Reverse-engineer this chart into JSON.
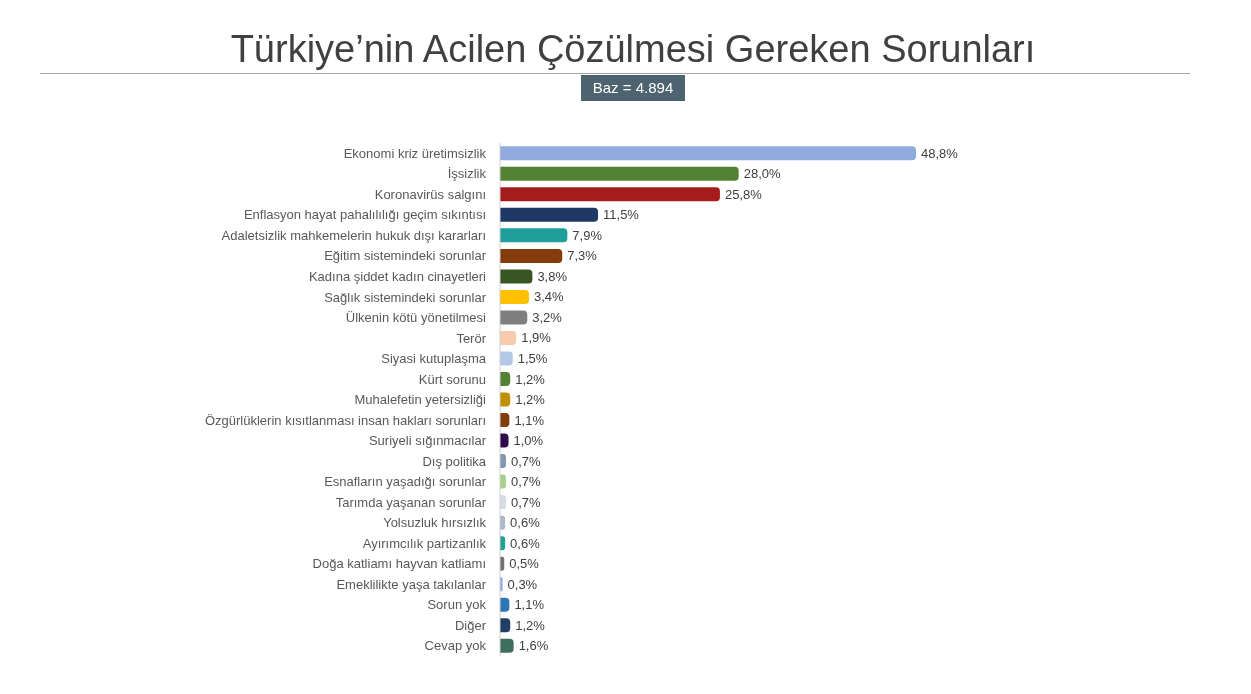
{
  "chart_data": {
    "type": "bar",
    "orientation": "horizontal",
    "title": "Türkiye’nin Acilen Çözülmesi Gereken Sorunları",
    "subtitle": "Baz = 4.894",
    "categories": [
      "Ekonomi kriz üretimsizlik",
      "İşsizlik",
      "Koronavirüs salgını",
      "Enflasyon hayat pahalılılığı geçim sıkıntısı",
      "Adaletsizlik mahkemelerin hukuk dışı kararları",
      "Eğitim sistemindeki sorunlar",
      "Kadına şiddet kadın cinayetleri",
      "Sağlık sistemindeki sorunlar",
      "Ülkenin kötü yönetilmesi",
      "Terör",
      "Siyasi kutuplaşma",
      "Kürt sorunu",
      "Muhalefetin yetersizliği",
      "Özgürlüklerin kısıtlanması insan hakları sorunları",
      "Suriyeli sığınmacılar",
      "Dış politika",
      "Esnafların yaşadığı sorunlar",
      "Tarımda yaşanan sorunlar",
      "Yolsuzluk hırsızlık",
      "Ayırımcılık partizanlık",
      "Doğa katliamı hayvan katliamı",
      "Emeklilikte yaşa takılanlar",
      "Sorun yok",
      "Diğer",
      "Cevap yok"
    ],
    "values": [
      48.8,
      28.0,
      25.8,
      11.5,
      7.9,
      7.3,
      3.8,
      3.4,
      3.2,
      1.9,
      1.5,
      1.2,
      1.2,
      1.1,
      1.0,
      0.7,
      0.7,
      0.7,
      0.6,
      0.6,
      0.5,
      0.3,
      1.1,
      1.2,
      1.6
    ],
    "value_labels": [
      "48,8%",
      "28,0%",
      "25,8%",
      "11,5%",
      "7,9%",
      "7,3%",
      "3,8%",
      "3,4%",
      "3,2%",
      "1,9%",
      "1,5%",
      "1,2%",
      "1,2%",
      "1,1%",
      "1,0%",
      "0,7%",
      "0,7%",
      "0,7%",
      "0,6%",
      "0,6%",
      "0,5%",
      "0,3%",
      "1,1%",
      "1,2%",
      "1,6%"
    ],
    "colors": [
      "#8faadc",
      "#548235",
      "#a51c1c",
      "#203864",
      "#1f9e9a",
      "#843c0c",
      "#375623",
      "#ffc000",
      "#7f7f7f",
      "#f8cbad",
      "#b4c7e7",
      "#548235",
      "#bf9000",
      "#843c0c",
      "#2e0a4a",
      "#8497b0",
      "#a9d18e",
      "#d6dce5",
      "#adb9ca",
      "#21a18f",
      "#767171",
      "#8faadc",
      "#2e75b6",
      "#1f3f66",
      "#3f6e5e"
    ]
  }
}
